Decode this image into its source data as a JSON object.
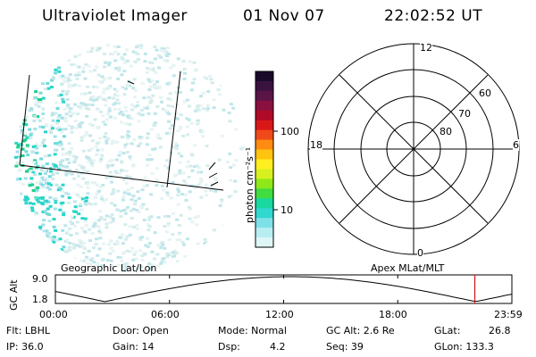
{
  "header": {
    "instrument": "Ultraviolet Imager",
    "date": "01 Nov 07",
    "time": "22:02:52 UT"
  },
  "colorbar": {
    "unit_label": "photon cm⁻²s⁻¹",
    "ticks": [
      "100",
      "10"
    ],
    "colors": [
      "#1a0a2a",
      "#3a1240",
      "#5a1448",
      "#8a1040",
      "#b00a28",
      "#d81818",
      "#f04a1a",
      "#ff8c10",
      "#ffc410",
      "#ffee20",
      "#d8f020",
      "#8fe81a",
      "#40dc40",
      "#18d8a0",
      "#30d8d0",
      "#7ee0e8",
      "#b8eef2",
      "#e0f6f6"
    ]
  },
  "polar_plot": {
    "mlt_labels": [
      "12",
      "18",
      "6",
      "0"
    ],
    "lat_labels": [
      "60",
      "70",
      "80"
    ]
  },
  "left_plot": {
    "label": "Geographic Lat/Lon"
  },
  "right_plot": {
    "label": "Apex MLat/MLT"
  },
  "orbit_strip": {
    "ylabel": "GC Alt",
    "yticks": [
      "9.0",
      "1.8"
    ],
    "xticks": [
      "00:00",
      "06:00",
      "12:00",
      "18:00",
      "23:59"
    ],
    "marker_hour": 22.05,
    "marker_color": "#d01010"
  },
  "info": {
    "flt": "Flt: LBHL",
    "ip": "IP: 36.0",
    "door": "Door: Open",
    "gain": "Gain: 14",
    "mode": "Mode: Normal",
    "dsp_label": "Dsp:",
    "dsp_value": "4.2",
    "gc_alt": "GC Alt: 2.6 Re",
    "seq": "Seq: 39",
    "glat_label": "GLat:",
    "glat_value": "26.8",
    "glon": "GLon: 133.3"
  }
}
